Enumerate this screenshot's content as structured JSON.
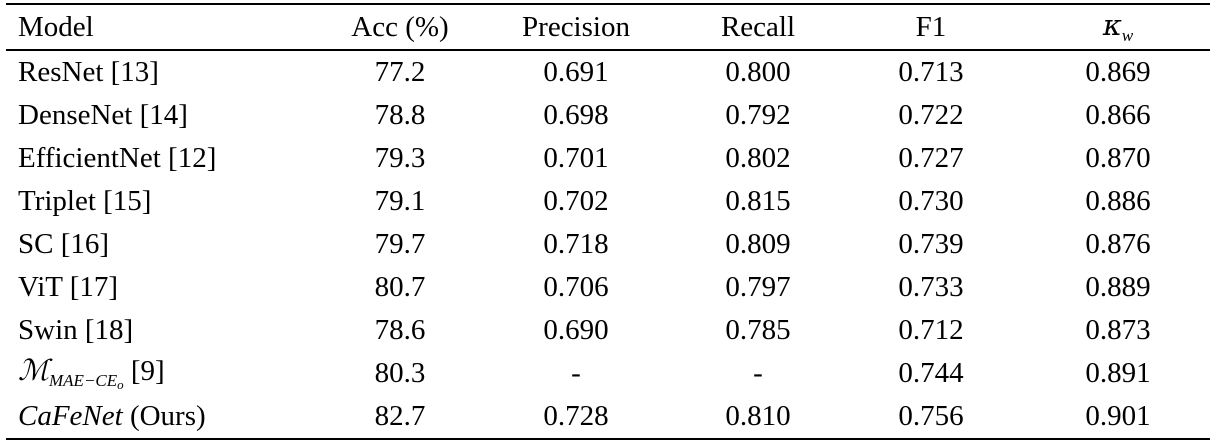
{
  "columns": {
    "model": "Model",
    "acc": "Acc (%)",
    "precision": "Precision",
    "recall": "Recall",
    "f1": "F1",
    "kappa_symbol": "κ",
    "kappa_sub": "w"
  },
  "rows": [
    {
      "model": "ResNet [13]",
      "acc": "77.2",
      "precision": "0.691",
      "recall": "0.800",
      "f1": "0.713",
      "kappa": "0.869"
    },
    {
      "model": "DenseNet [14]",
      "acc": "78.8",
      "precision": "0.698",
      "recall": "0.792",
      "f1": "0.722",
      "kappa": "0.866"
    },
    {
      "model": "EfficientNet [12]",
      "acc": "79.3",
      "precision": "0.701",
      "recall": "0.802",
      "f1": "0.727",
      "kappa": "0.870"
    },
    {
      "model": "Triplet [15]",
      "acc": "79.1",
      "precision": "0.702",
      "recall": "0.815",
      "f1": "0.730",
      "kappa": "0.886"
    },
    {
      "model": "SC [16]",
      "acc": "79.7",
      "precision": "0.718",
      "recall": "0.809",
      "f1": "0.739",
      "kappa": "0.876"
    },
    {
      "model": "ViT [17]",
      "acc": "80.7",
      "precision": "0.706",
      "recall": "0.797",
      "f1": "0.733",
      "kappa": "0.889"
    },
    {
      "model": "Swin [18]",
      "acc": "78.6",
      "precision": "0.690",
      "recall": "0.785",
      "f1": "0.712",
      "kappa": "0.873"
    },
    {
      "model_symbol": "ℳ",
      "model_sub": "MAE−CE",
      "model_subsub": "o",
      "model_ref": " [9]",
      "acc": "80.3",
      "precision": "-",
      "recall": "-",
      "f1": "0.744",
      "kappa": "0.891"
    },
    {
      "model_italic": "CaFeNet",
      "model_suffix": " (Ours)",
      "acc": "82.7",
      "precision": "0.728",
      "recall": "0.810",
      "f1": "0.756",
      "kappa": "0.901"
    }
  ]
}
